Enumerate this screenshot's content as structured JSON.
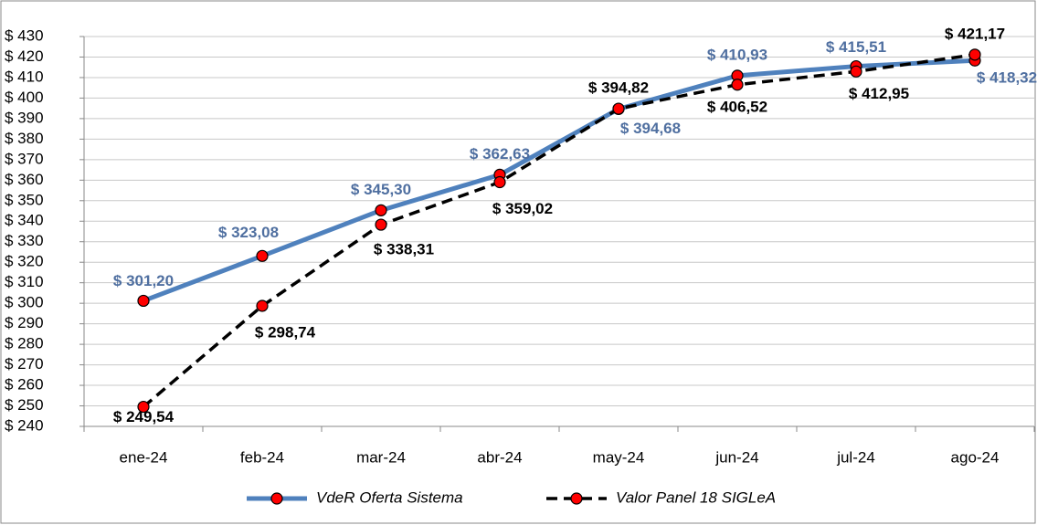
{
  "chart_data": {
    "type": "line",
    "categories": [
      "ene-24",
      "feb-24",
      "mar-24",
      "abr-24",
      "may-24",
      "jun-24",
      "jul-24",
      "ago-24"
    ],
    "series": [
      {
        "name": "VdeR Oferta Sistema",
        "color": "#4f81bd",
        "values": [
          301.2,
          323.08,
          345.3,
          362.63,
          394.68,
          410.93,
          415.51,
          418.32
        ],
        "value_labels": [
          "$ 301,20",
          "$ 323,08",
          "$ 345,30",
          "$ 362,63",
          "$ 394,68",
          "$ 410,93",
          "$ 415,51",
          "$ 418,32"
        ]
      },
      {
        "name": "Valor Panel 18 SIGLeA",
        "color": "#000000",
        "dashed": true,
        "values": [
          249.54,
          298.74,
          338.31,
          359.02,
          394.82,
          406.52,
          412.95,
          421.17
        ],
        "value_labels": [
          "$ 249,54",
          "$ 298,74",
          "$ 338,31",
          "$ 359,02",
          "$ 394,82",
          "$ 406,52",
          "$ 412,95",
          "$ 421,17"
        ]
      }
    ],
    "marker_color": "#ff0000",
    "ylim": [
      240,
      430
    ],
    "yticks": [
      {
        "value": 240,
        "label": "$ 240"
      },
      {
        "value": 250,
        "label": "$ 250"
      },
      {
        "value": 260,
        "label": "$ 260"
      },
      {
        "value": 270,
        "label": "$ 270"
      },
      {
        "value": 280,
        "label": "$ 280"
      },
      {
        "value": 290,
        "label": "$ 290"
      },
      {
        "value": 300,
        "label": "$ 300"
      },
      {
        "value": 310,
        "label": "$ 310"
      },
      {
        "value": 320,
        "label": "$ 320"
      },
      {
        "value": 330,
        "label": "$ 330"
      },
      {
        "value": 340,
        "label": "$ 340"
      },
      {
        "value": 350,
        "label": "$ 350"
      },
      {
        "value": 360,
        "label": "$ 360"
      },
      {
        "value": 370,
        "label": "$ 370"
      },
      {
        "value": 380,
        "label": "$ 380"
      },
      {
        "value": 390,
        "label": "$ 390"
      },
      {
        "value": 400,
        "label": "$ 400"
      },
      {
        "value": 410,
        "label": "$ 410"
      },
      {
        "value": 420,
        "label": "$ 420"
      },
      {
        "value": 430,
        "label": "$ 430"
      }
    ],
    "grid": true,
    "legend": "bottom"
  }
}
